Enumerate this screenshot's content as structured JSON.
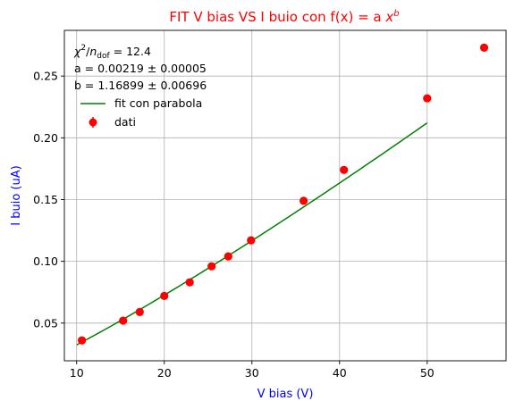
{
  "chart_data": {
    "type": "scatter",
    "title": {
      "main": "FIT V bias VS I buio con f(x) = a ",
      "var": "x",
      "exp": "b"
    },
    "xlabel": "V bias (V)",
    "ylabel": "I buio (uA)",
    "xlim": [
      8.6,
      59
    ],
    "ylim": [
      0.0195,
      0.287
    ],
    "xticks": [
      10,
      20,
      30,
      40,
      50
    ],
    "yticks": [
      0.05,
      0.1,
      0.15,
      0.2,
      0.25
    ],
    "xtick_labels": [
      "10",
      "20",
      "30",
      "40",
      "50"
    ],
    "ytick_labels": [
      "0.05",
      "0.10",
      "0.15",
      "0.20",
      "0.25"
    ],
    "grid": true,
    "legend_position": "top-left",
    "colors": {
      "title": "#ff0000",
      "axis_labels": "#0000ff",
      "points": "#ff0000",
      "fit": "#008000",
      "grid": "#b0b0b0"
    },
    "stats": {
      "chi_symbol": "χ",
      "chi_exp": "2",
      "chi_div": "/",
      "chi_n": "n",
      "chi_sub": "dof",
      "chi_value": " = 12.4",
      "a": "a = 0.00219 ± 0.00005",
      "b": "b = 1.16899 ± 0.00696"
    },
    "series": [
      {
        "name": "fit con parabola",
        "kind": "line",
        "a": 0.00219,
        "b": 1.16899,
        "x_range": [
          10,
          50
        ]
      },
      {
        "name": "dati",
        "kind": "points",
        "points": [
          {
            "x": 10.6,
            "y": 0.036
          },
          {
            "x": 15.3,
            "y": 0.052
          },
          {
            "x": 17.2,
            "y": 0.059
          },
          {
            "x": 20.0,
            "y": 0.072
          },
          {
            "x": 22.9,
            "y": 0.083
          },
          {
            "x": 25.4,
            "y": 0.096
          },
          {
            "x": 27.3,
            "y": 0.104
          },
          {
            "x": 29.9,
            "y": 0.117
          },
          {
            "x": 35.9,
            "y": 0.149
          },
          {
            "x": 40.5,
            "y": 0.174
          },
          {
            "x": 50.0,
            "y": 0.232
          },
          {
            "x": 56.5,
            "y": 0.273
          }
        ]
      }
    ]
  }
}
